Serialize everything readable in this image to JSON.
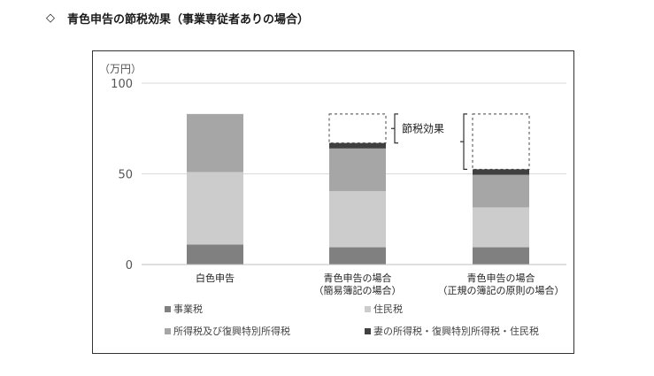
{
  "header": {
    "icon": "diamond-outline-icon",
    "title": "青色申告の節税効果（事業専従者ありの場合）"
  },
  "chart_data": {
    "type": "bar",
    "stacked": true,
    "unit": "（万円）",
    "ylim": [
      0,
      100
    ],
    "yticks": [
      0,
      50,
      100
    ],
    "grid": true,
    "categories": [
      [
        "白色申告"
      ],
      [
        "青色申告の場合",
        "（簡易簿記の場合）"
      ],
      [
        "青色申告の場合",
        "（正規の簿記の原則の場合）"
      ]
    ],
    "series": [
      {
        "name": "事業税",
        "color": "#808080",
        "values": [
          11,
          9.5,
          9.5
        ]
      },
      {
        "name": "住民税",
        "color": "#cccccc",
        "values": [
          40,
          31,
          22
        ]
      },
      {
        "name": "所得税及び復興特別所得税",
        "color": "#a6a6a6",
        "values": [
          32,
          23.5,
          18
        ]
      },
      {
        "name": "妻の所得税・復興特別所得税・住民税",
        "color": "#404040",
        "values": [
          0,
          3,
          3
        ]
      }
    ],
    "savings_boxes": [
      {
        "category_index": 1,
        "from": 67,
        "to": 83
      },
      {
        "category_index": 2,
        "from": 52.5,
        "to": 83
      }
    ],
    "annotation": "節税効果",
    "legend_placement": "bottom"
  }
}
